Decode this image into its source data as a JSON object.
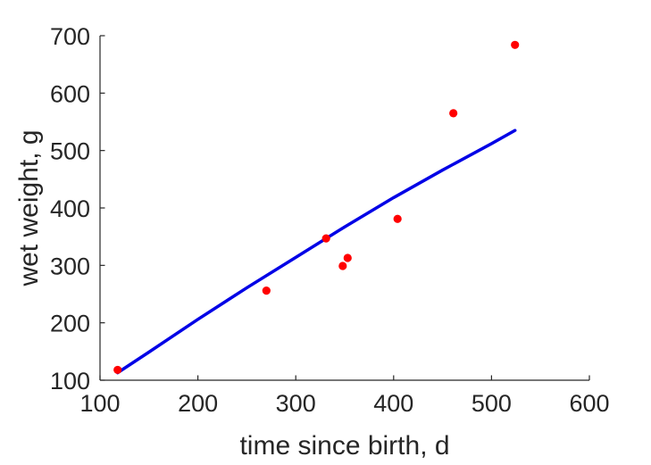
{
  "chart_data": {
    "type": "scatter",
    "xlabel": "time since birth, d",
    "ylabel": "wet weight, g",
    "xlim": [
      100,
      600
    ],
    "ylim": [
      100,
      700
    ],
    "xticks": [
      "100",
      "200",
      "300",
      "400",
      "500",
      "600"
    ],
    "yticks": [
      "100",
      "200",
      "300",
      "400",
      "500",
      "600",
      "700"
    ],
    "grid": false,
    "colors": {
      "points": "#ff0000",
      "line": "#0000e6",
      "axis": "#262626"
    },
    "series": [
      {
        "kind": "scatter",
        "x": [
          118,
          270,
          331,
          348,
          353,
          404,
          461,
          524
        ],
        "y": [
          118,
          256,
          347,
          299,
          313,
          381,
          565,
          684
        ]
      },
      {
        "kind": "line",
        "x": [
          118,
          150,
          200,
          250,
          300,
          350,
          400,
          450,
          500,
          524
        ],
        "y": [
          113,
          149,
          206,
          261,
          314,
          367,
          418,
          466,
          512,
          535
        ]
      }
    ]
  }
}
